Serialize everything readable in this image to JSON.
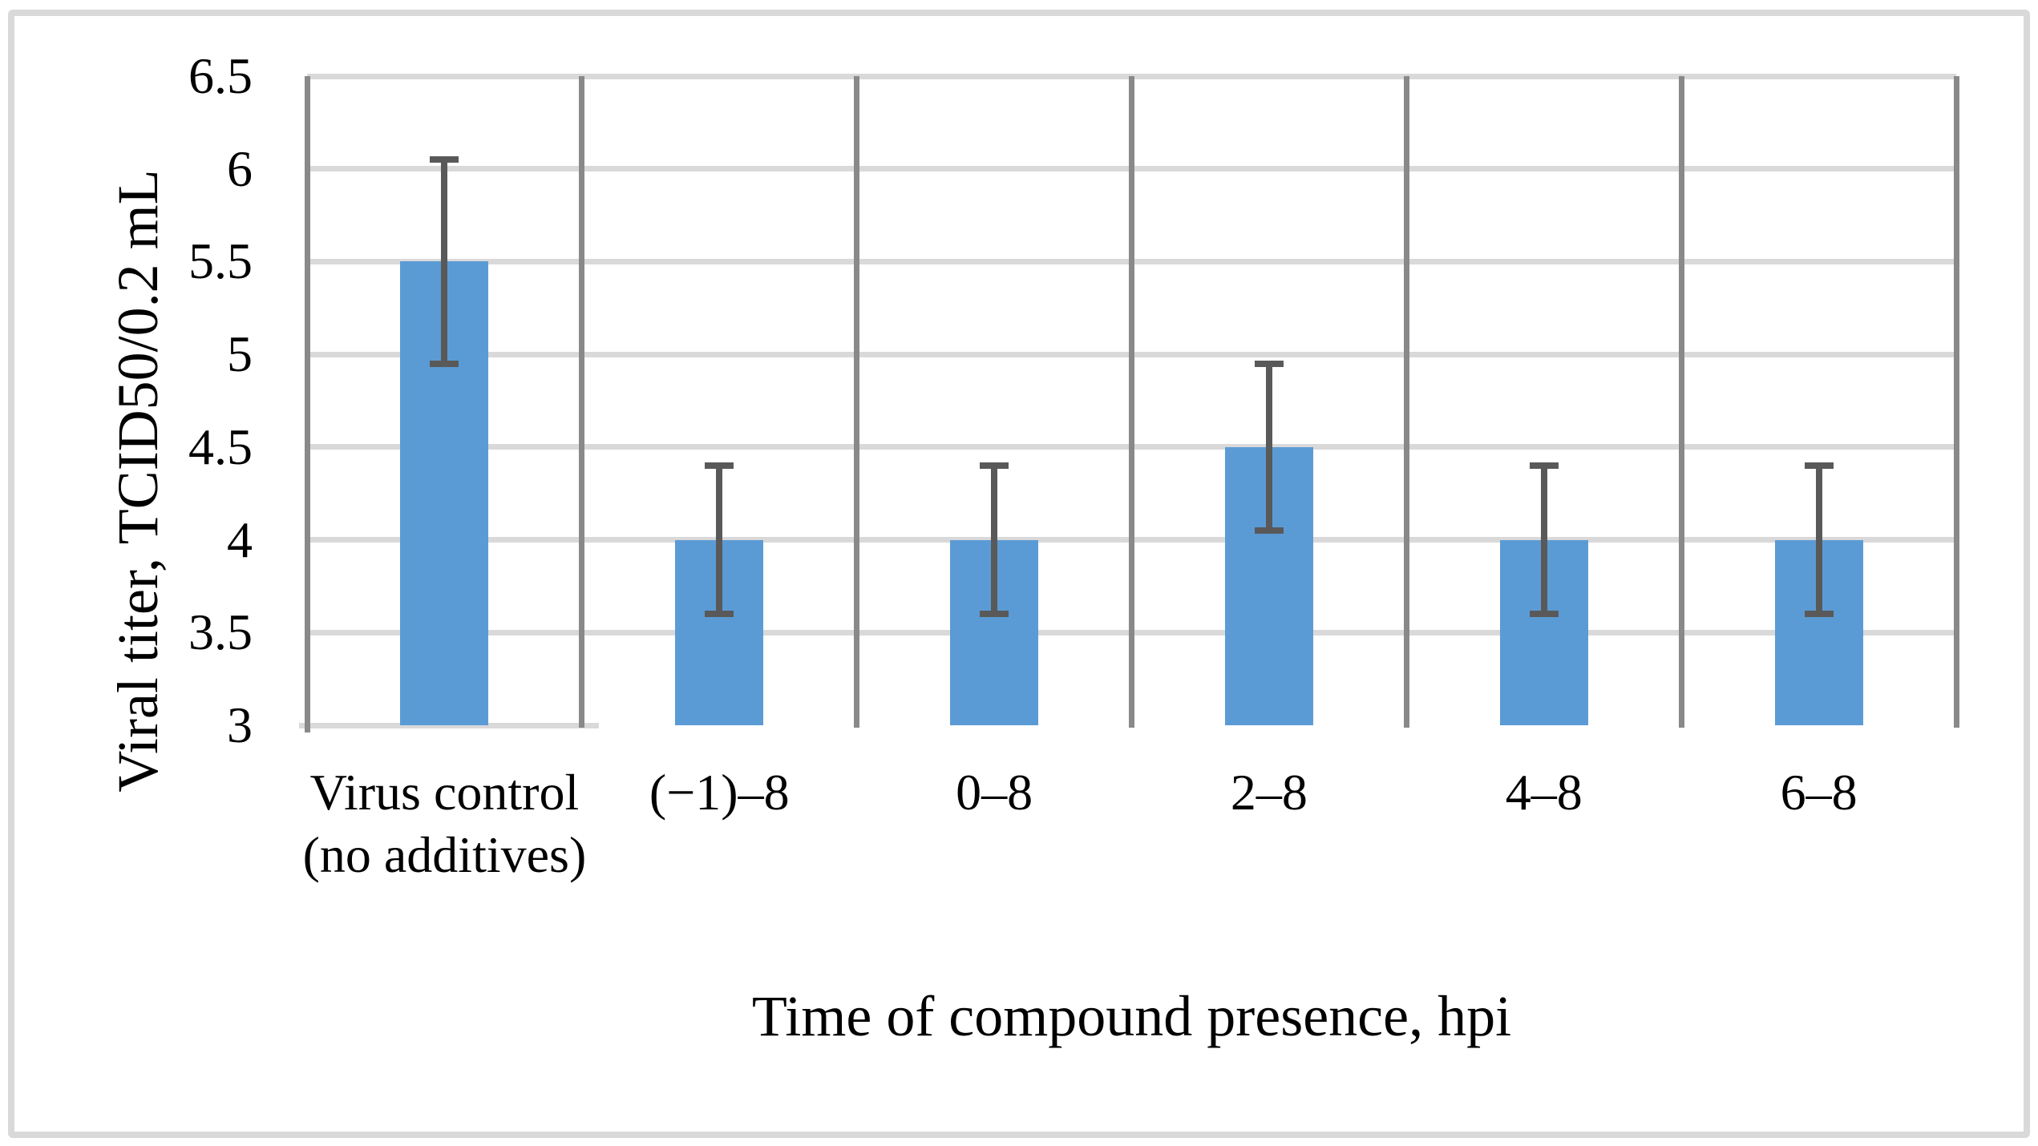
{
  "style": {
    "bar_fill": "#5b9bd5",
    "error_color": "#595959",
    "gridline_color": "#d9d9d9",
    "axis_line_color": "#898989",
    "frame_border_color": "#d9d9d9",
    "background": "#ffffff",
    "text_color": "#000000"
  },
  "chart_data": {
    "type": "bar",
    "title": "",
    "xlabel": "Time of compound presence, hpi",
    "ylabel": "Viral titer, TCID50/0.2 mL",
    "categories": [
      "Virus control (no additives)",
      "(−1)–8",
      "0–8",
      "2–8",
      "4–8",
      "6–8"
    ],
    "series": [
      {
        "name": "Viral titer",
        "values": [
          5.5,
          4,
          4,
          4.5,
          4,
          4
        ],
        "error_plus": [
          0.55,
          0.4,
          0.4,
          0.45,
          0.4,
          0.4
        ],
        "error_minus": [
          0.55,
          0.4,
          0.4,
          0.45,
          0.4,
          0.4
        ]
      }
    ],
    "ylim": [
      3,
      6.5
    ],
    "ytick_step": 0.5,
    "yticks": [
      3,
      3.5,
      4,
      4.5,
      5,
      5.5,
      6,
      6.5
    ],
    "ytick_labels": [
      "3",
      "3.5",
      "4",
      "4.5",
      "5",
      "5.5",
      "6",
      "6.5"
    ],
    "grid": true,
    "legend": false,
    "bar_baseline": 3
  }
}
